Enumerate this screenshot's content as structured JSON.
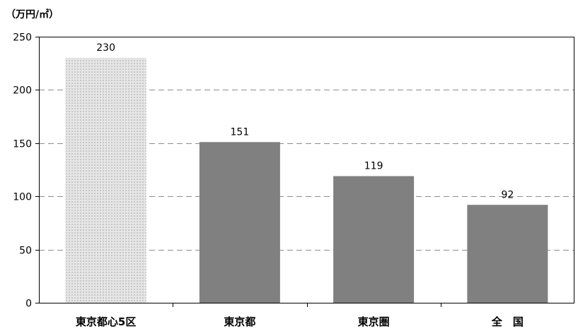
{
  "chart_data": {
    "type": "bar",
    "unit_label": "（万円/㎡）",
    "categories": [
      "東京都心5区",
      "東京都",
      "東京圏",
      "全　国"
    ],
    "values": [
      230,
      151,
      119,
      92
    ],
    "data_labels": [
      "230",
      "151",
      "119",
      "92"
    ],
    "ylim": [
      0,
      250
    ],
    "yticks": [
      0,
      50,
      100,
      150,
      200,
      250
    ],
    "grid": "dashed horizontal",
    "legend": "none",
    "bar_styles": [
      "dotted",
      "solid",
      "solid",
      "solid"
    ],
    "colors": {
      "solid_bar": "#808080",
      "dotted_bar_bg": "#e6e6e6",
      "dotted_bar_dot": "#9a9a9a",
      "grid": "#8c8c8c",
      "axis": "#000000"
    }
  }
}
